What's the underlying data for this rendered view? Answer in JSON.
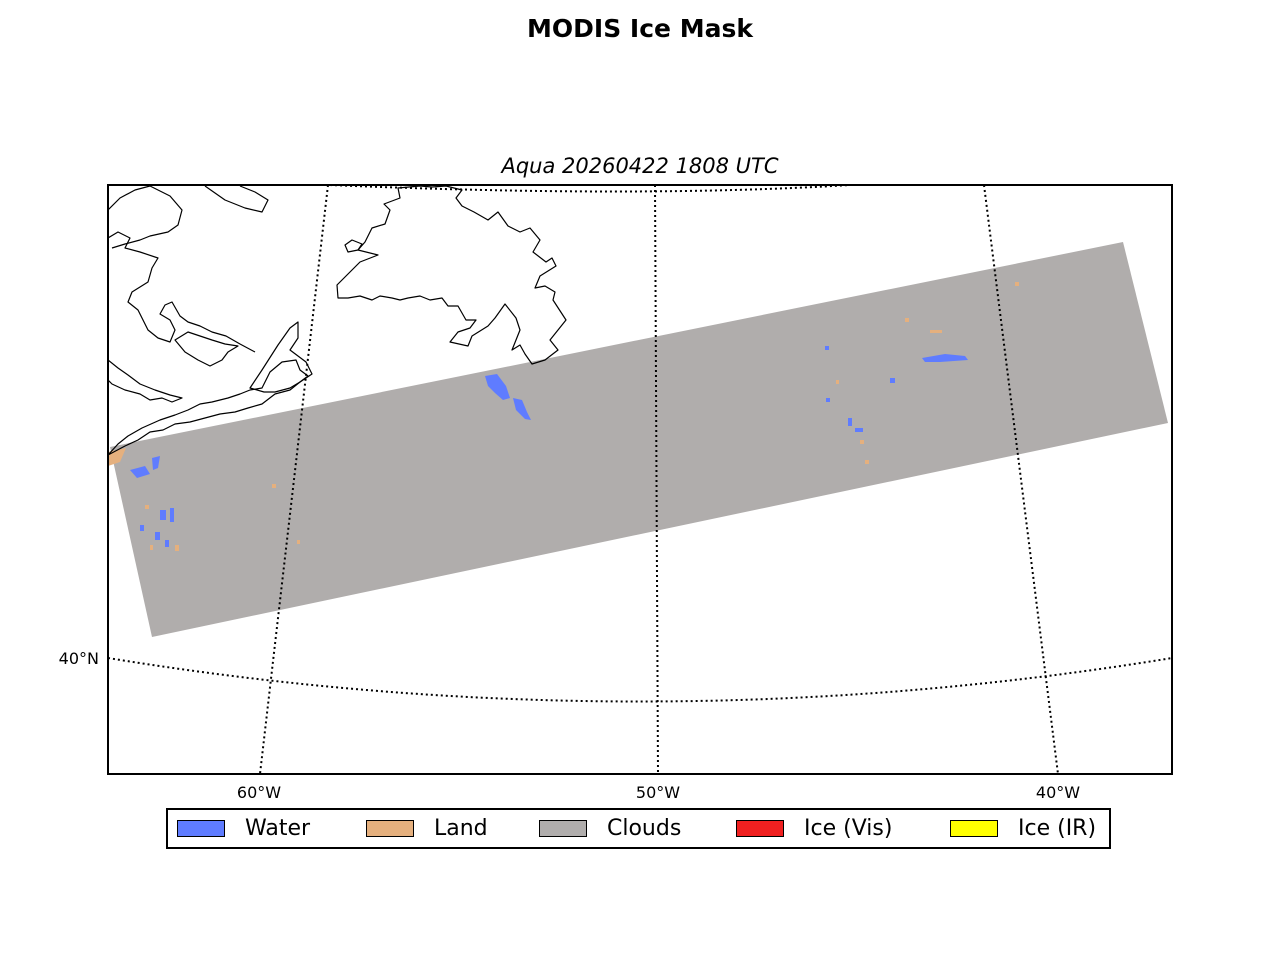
{
  "title": "MODIS Ice Mask",
  "subtitle": "Aqua 20260422 1808 UTC",
  "axes": {
    "lat_labels": [
      "40°N"
    ],
    "lon_labels": [
      "60°W",
      "50°W",
      "40°W"
    ]
  },
  "legend": {
    "items": [
      {
        "label": "Water",
        "color": "#5f7cff"
      },
      {
        "label": "Land",
        "color": "#e5b07e"
      },
      {
        "label": "Clouds",
        "color": "#b0adac"
      },
      {
        "label": "Ice (Vis)",
        "color": "#f02020"
      },
      {
        "label": "Ice (IR)",
        "color": "#ffff00"
      }
    ]
  },
  "colors": {
    "water": "#5f7cff",
    "land": "#e5b07e",
    "clouds": "#b0adac",
    "coastline": "#000000",
    "graticule": "#000000"
  }
}
